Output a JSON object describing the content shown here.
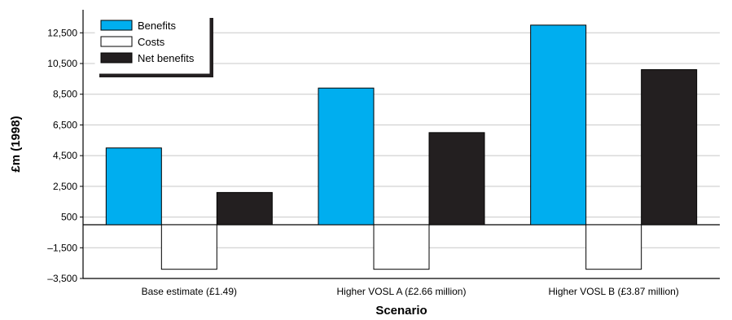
{
  "chart_data": {
    "type": "bar",
    "xlabel": "Scenario",
    "ylabel": "£m (1998)",
    "ylim": [
      -3500,
      14000
    ],
    "yticks": [
      -3500,
      -1500,
      500,
      2500,
      4500,
      6500,
      8500,
      10500,
      12500
    ],
    "ytick_labels": [
      "–3,500",
      "–1,500",
      "500",
      "2,500",
      "4,500",
      "6,500",
      "8,500",
      "10,500",
      "12,500"
    ],
    "categories": [
      "Base estimate (£1.49)",
      "Higher VOSL A (£2.66 million)",
      "Higher VOSL B (£3.87 million)"
    ],
    "series": [
      {
        "name": "Benefits",
        "values": [
          5000,
          8900,
          13000
        ]
      },
      {
        "name": "Costs",
        "values": [
          -2900,
          -2900,
          -2900
        ]
      },
      {
        "name": "Net benefits",
        "values": [
          2100,
          6000,
          10100
        ]
      }
    ],
    "colors": {
      "Benefits": "#00aeef",
      "Costs": "#ffffff",
      "Net benefits": "#231f20"
    },
    "grid": true,
    "legend_position": "top-left"
  }
}
